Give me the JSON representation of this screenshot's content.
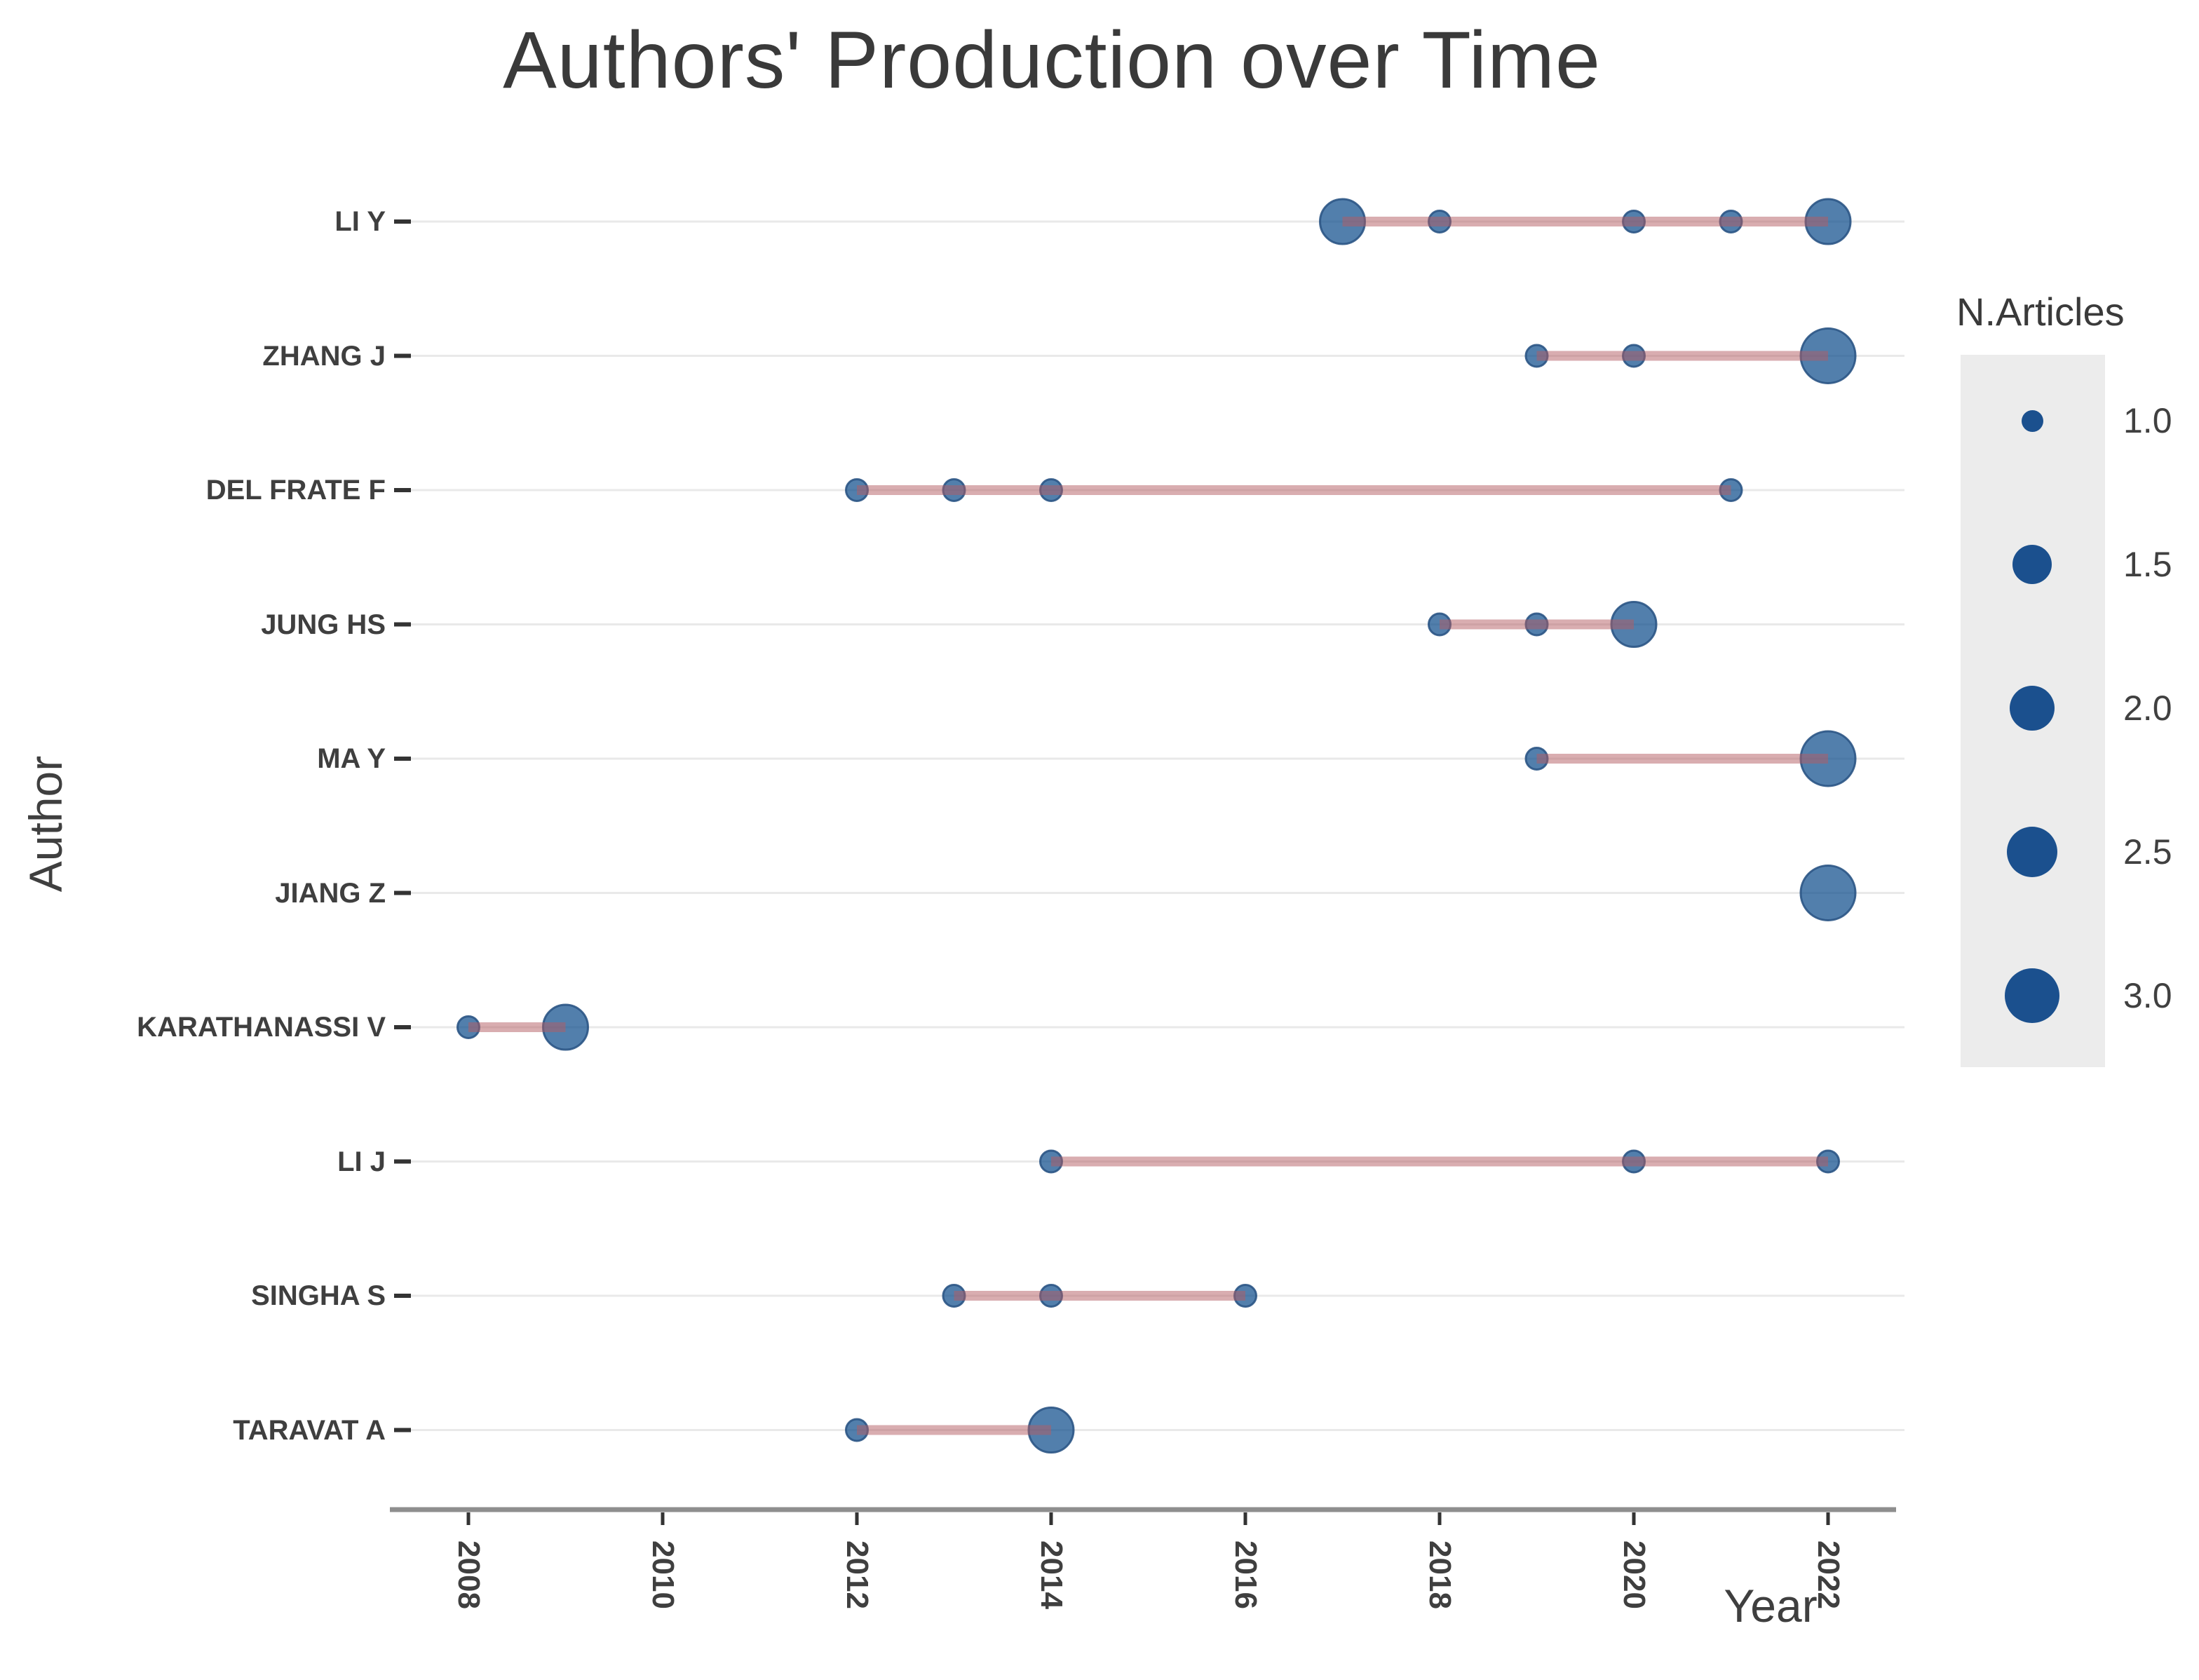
{
  "page": {
    "background": "#ffffff"
  },
  "title": {
    "text": "Authors' Production over Time"
  },
  "axes": {
    "y_title": "Author",
    "x_title": "Year",
    "x_tick_labels": [
      "2008",
      "2010",
      "2012",
      "2014",
      "2016",
      "2018",
      "2020",
      "2022"
    ]
  },
  "legend": {
    "title": "N.Articles",
    "items": [
      {
        "label": "1.0",
        "value": 1.0
      },
      {
        "label": "1.5",
        "value": 1.5
      },
      {
        "label": "2.0",
        "value": 2.0
      },
      {
        "label": "2.5",
        "value": 2.5
      },
      {
        "label": "3.0",
        "value": 3.0
      }
    ]
  },
  "colors": {
    "bubble_fill": "#0F4E8C",
    "bubble_stroke": "#2B5585",
    "legend_bubble": "#1B508E",
    "timeline_line": "#B45C61",
    "gridline": "#E9E9E9",
    "axis_line": "#8E8E8E",
    "tick_mark": "#333333",
    "text": "#3F3F3F",
    "legend_panel": "#ECECEC"
  },
  "chart_data": {
    "type": "scatter",
    "subtype": "bubble-timeline",
    "title": "Authors' Production over Time",
    "xlabel": "Year",
    "ylabel": "Author",
    "x_tick_years": [
      2008,
      2010,
      2012,
      2014,
      2016,
      2018,
      2020,
      2022
    ],
    "x_range": [
      2007.2,
      2022.8
    ],
    "grid": "horizontal-only",
    "legend_position": "right",
    "legend_title": "N.Articles",
    "legend_sizes": [
      1.0,
      1.5,
      2.0,
      2.5,
      3.0
    ],
    "series": [
      {
        "author": "LI Y",
        "active_span": [
          2017,
          2022
        ],
        "points": [
          {
            "year": 2017,
            "n_articles": 2
          },
          {
            "year": 2018,
            "n_articles": 1
          },
          {
            "year": 2020,
            "n_articles": 1
          },
          {
            "year": 2021,
            "n_articles": 1
          },
          {
            "year": 2022,
            "n_articles": 2
          }
        ]
      },
      {
        "author": "ZHANG J",
        "active_span": [
          2019,
          2022
        ],
        "points": [
          {
            "year": 2019,
            "n_articles": 1
          },
          {
            "year": 2020,
            "n_articles": 1
          },
          {
            "year": 2022,
            "n_articles": 3
          }
        ]
      },
      {
        "author": "DEL FRATE F",
        "active_span": [
          2012,
          2021
        ],
        "points": [
          {
            "year": 2012,
            "n_articles": 1
          },
          {
            "year": 2013,
            "n_articles": 1
          },
          {
            "year": 2014,
            "n_articles": 1
          },
          {
            "year": 2021,
            "n_articles": 1
          }
        ]
      },
      {
        "author": "JUNG HS",
        "active_span": [
          2018,
          2020
        ],
        "points": [
          {
            "year": 2018,
            "n_articles": 1
          },
          {
            "year": 2019,
            "n_articles": 1
          },
          {
            "year": 2020,
            "n_articles": 2
          }
        ]
      },
      {
        "author": "MA Y",
        "active_span": [
          2019,
          2022
        ],
        "points": [
          {
            "year": 2019,
            "n_articles": 1
          },
          {
            "year": 2022,
            "n_articles": 3
          }
        ]
      },
      {
        "author": "JIANG Z",
        "active_span": [
          2022,
          2022
        ],
        "points": [
          {
            "year": 2022,
            "n_articles": 3
          }
        ]
      },
      {
        "author": "KARATHANASSI V",
        "active_span": [
          2008,
          2009
        ],
        "points": [
          {
            "year": 2008,
            "n_articles": 1
          },
          {
            "year": 2009,
            "n_articles": 2
          }
        ]
      },
      {
        "author": "LI J",
        "active_span": [
          2014,
          2022
        ],
        "points": [
          {
            "year": 2014,
            "n_articles": 1
          },
          {
            "year": 2020,
            "n_articles": 1
          },
          {
            "year": 2022,
            "n_articles": 1
          }
        ]
      },
      {
        "author": "SINGHA S",
        "active_span": [
          2013,
          2016
        ],
        "points": [
          {
            "year": 2013,
            "n_articles": 1
          },
          {
            "year": 2014,
            "n_articles": 1
          },
          {
            "year": 2016,
            "n_articles": 1
          }
        ]
      },
      {
        "author": "TARAVAT A",
        "active_span": [
          2012,
          2014
        ],
        "points": [
          {
            "year": 2012,
            "n_articles": 1
          },
          {
            "year": 2014,
            "n_articles": 2
          }
        ]
      }
    ]
  }
}
